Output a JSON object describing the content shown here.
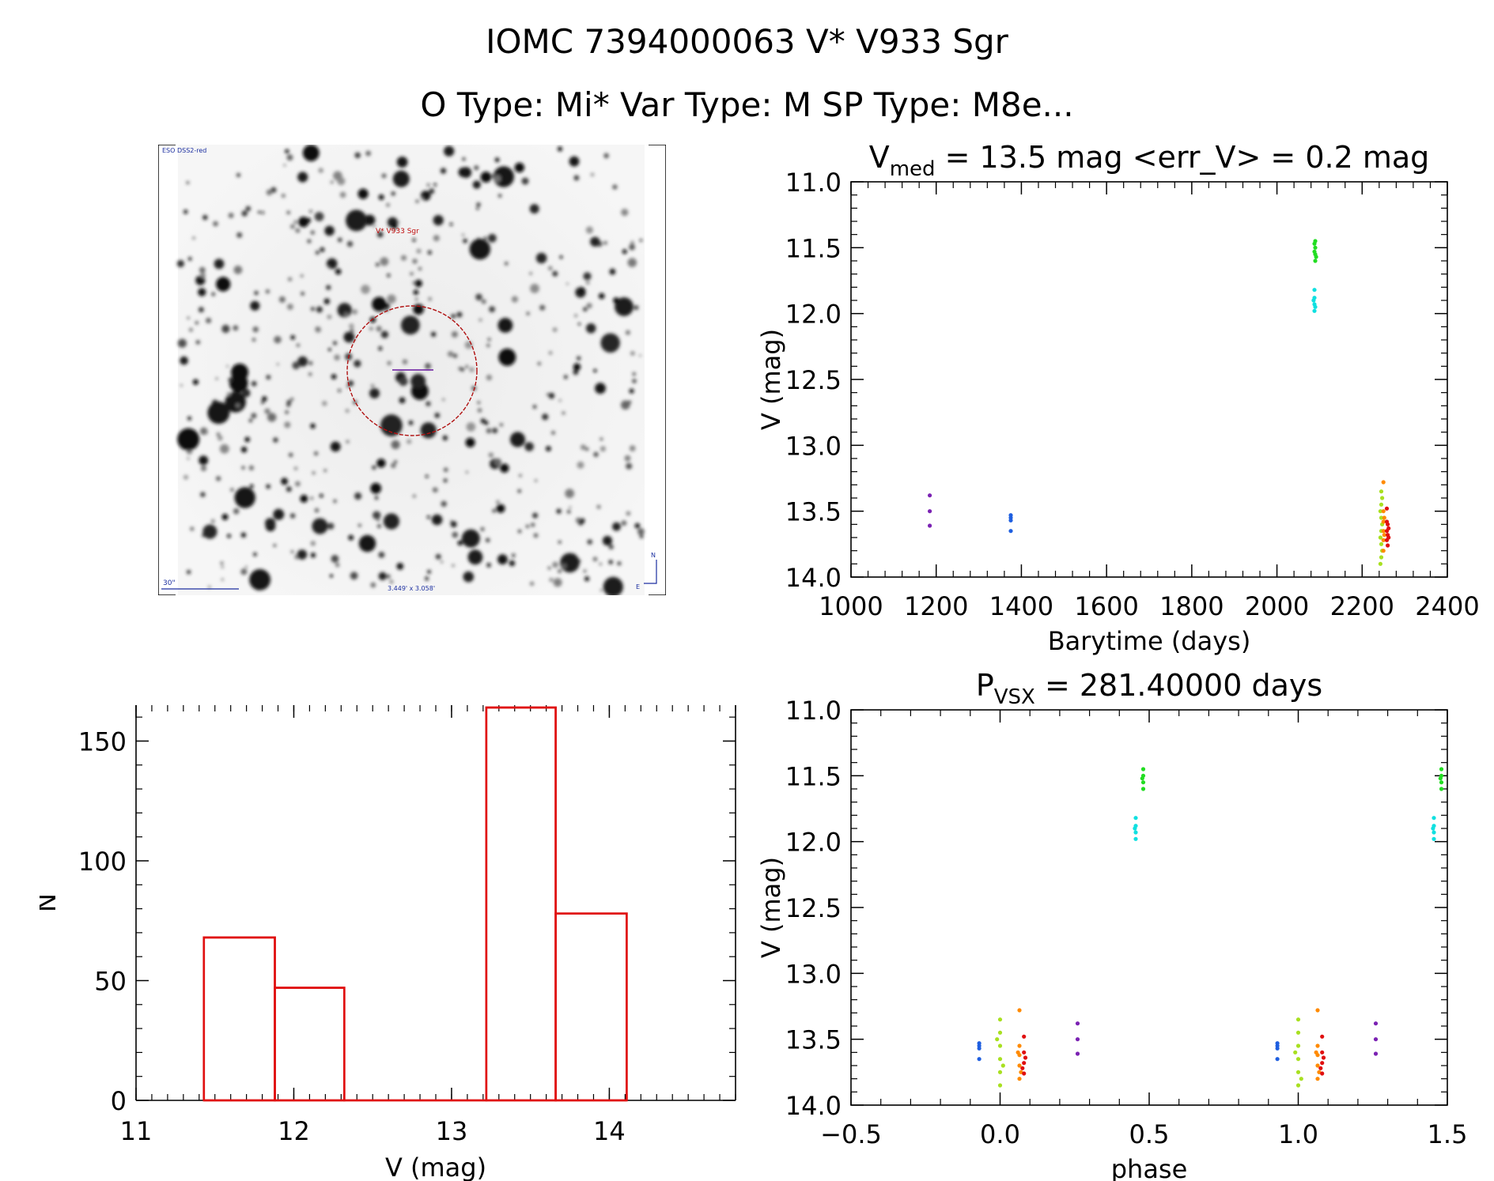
{
  "header": {
    "line1": "IOMC 7394000063   V* V933 Sgr",
    "line2": "O Type: Mi*  Var Type: M  SP Type: M8e..."
  },
  "finding_chart": {
    "survey_label": "ESO DSS2-red",
    "target_label": "V* V933 Sgr",
    "scale_label": "30\"",
    "fov_label": "3.449' x 3.058'",
    "north_label": "N",
    "east_label": "E"
  },
  "colors": {
    "hist": "#e01010",
    "purple": "#7b22b3",
    "blue": "#1f5fe0",
    "green": "#22dd22",
    "cyan": "#10e0e0",
    "lime": "#a8e020",
    "orange": "#ff8a00",
    "red": "#e01010"
  },
  "chart_data": [
    {
      "type": "scatter",
      "title_prefix": "V",
      "title_sub": "med",
      "title_rest": " = 13.5 mag <err_V> = 0.2 mag",
      "xlabel": "Barytime (days)",
      "ylabel": "V (mag)",
      "xlim": [
        1000,
        2400
      ],
      "ylim": [
        14.0,
        11.0
      ],
      "xticks": [
        1000,
        1200,
        1400,
        1600,
        1800,
        2000,
        2200,
        2400
      ],
      "yticks": [
        11.0,
        11.5,
        12.0,
        12.5,
        13.0,
        13.5,
        14.0
      ],
      "series": [
        {
          "color": "purple",
          "points": [
            [
              1185,
              13.38
            ],
            [
              1185,
              13.5
            ],
            [
              1185,
              13.61
            ]
          ]
        },
        {
          "color": "blue",
          "points": [
            [
              1375,
              13.53
            ],
            [
              1375,
              13.55
            ],
            [
              1375,
              13.57
            ],
            [
              1375,
              13.65
            ]
          ]
        },
        {
          "color": "green",
          "points": [
            [
              2090,
              11.45
            ],
            [
              2090,
              11.5
            ],
            [
              2090,
              11.55
            ],
            [
              2090,
              11.6
            ],
            [
              2088,
              11.47
            ],
            [
              2088,
              11.53
            ],
            [
              2092,
              11.57
            ]
          ]
        },
        {
          "color": "cyan",
          "points": [
            [
              2088,
              11.82
            ],
            [
              2088,
              11.88
            ],
            [
              2088,
              11.93
            ],
            [
              2088,
              11.98
            ],
            [
              2086,
              11.9
            ],
            [
              2090,
              11.95
            ]
          ]
        },
        {
          "color": "lime",
          "points": [
            [
              2245,
              13.35
            ],
            [
              2245,
              13.45
            ],
            [
              2245,
              13.55
            ],
            [
              2245,
              13.65
            ],
            [
              2245,
              13.75
            ],
            [
              2245,
              13.85
            ],
            [
              2247,
              13.4
            ],
            [
              2247,
              13.6
            ],
            [
              2247,
              13.8
            ],
            [
              2243,
              13.5
            ],
            [
              2243,
              13.7
            ],
            [
              2243,
              13.9
            ]
          ]
        },
        {
          "color": "orange",
          "points": [
            [
              2250,
              13.28
            ],
            [
              2250,
              13.5
            ],
            [
              2250,
              13.58
            ],
            [
              2250,
              13.65
            ],
            [
              2250,
              13.72
            ],
            [
              2250,
              13.8
            ],
            [
              2252,
              13.55
            ],
            [
              2252,
              13.68
            ]
          ]
        },
        {
          "color": "red",
          "points": [
            [
              2258,
              13.48
            ],
            [
              2258,
              13.58
            ],
            [
              2258,
              13.65
            ],
            [
              2258,
              13.72
            ],
            [
              2260,
              13.6
            ],
            [
              2260,
              13.68
            ],
            [
              2260,
              13.76
            ],
            [
              2262,
              13.63
            ],
            [
              2262,
              13.7
            ]
          ]
        }
      ]
    },
    {
      "type": "scatter",
      "title_prefix": "P",
      "title_sub": "VSX",
      "title_rest": " = 281.40000 days",
      "xlabel": "phase",
      "ylabel": "V (mag)",
      "xlim": [
        -0.5,
        1.5
      ],
      "ylim": [
        14.0,
        11.0
      ],
      "xticks": [
        -0.5,
        0.0,
        0.5,
        1.0,
        1.5
      ],
      "xtick_labels": [
        "−0.5",
        "0.0",
        "0.5",
        "1.0",
        "1.5"
      ],
      "yticks": [
        11.0,
        11.5,
        12.0,
        12.5,
        13.0,
        13.5,
        14.0
      ],
      "series": [
        {
          "color": "blue",
          "points": [
            [
              -0.07,
              13.53
            ],
            [
              -0.07,
              13.55
            ],
            [
              -0.07,
              13.57
            ],
            [
              -0.07,
              13.65
            ],
            [
              0.93,
              13.53
            ],
            [
              0.93,
              13.55
            ],
            [
              0.93,
              13.57
            ],
            [
              0.93,
              13.65
            ]
          ]
        },
        {
          "color": "lime",
          "points": [
            [
              0.0,
              13.35
            ],
            [
              0.0,
              13.45
            ],
            [
              0.0,
              13.55
            ],
            [
              0.0,
              13.65
            ],
            [
              0.0,
              13.75
            ],
            [
              0.0,
              13.85
            ],
            [
              -0.01,
              13.5
            ],
            [
              0.01,
              13.7
            ],
            [
              1.0,
              13.35
            ],
            [
              1.0,
              13.45
            ],
            [
              1.0,
              13.55
            ],
            [
              1.0,
              13.65
            ],
            [
              1.0,
              13.75
            ],
            [
              1.0,
              13.85
            ],
            [
              0.99,
              13.6
            ],
            [
              1.01,
              13.8
            ]
          ]
        },
        {
          "color": "orange",
          "points": [
            [
              0.065,
              13.28
            ],
            [
              0.065,
              13.55
            ],
            [
              0.065,
              13.62
            ],
            [
              0.065,
              13.7
            ],
            [
              0.065,
              13.8
            ],
            [
              0.06,
              13.6
            ],
            [
              0.07,
              13.75
            ],
            [
              1.065,
              13.28
            ],
            [
              1.065,
              13.55
            ],
            [
              1.065,
              13.62
            ],
            [
              1.065,
              13.7
            ],
            [
              1.065,
              13.8
            ],
            [
              1.06,
              13.6
            ],
            [
              1.07,
              13.75
            ]
          ]
        },
        {
          "color": "red",
          "points": [
            [
              0.08,
              13.48
            ],
            [
              0.08,
              13.6
            ],
            [
              0.08,
              13.68
            ],
            [
              0.08,
              13.76
            ],
            [
              0.085,
              13.64
            ],
            [
              0.075,
              13.72
            ],
            [
              1.08,
              13.48
            ],
            [
              1.08,
              13.6
            ],
            [
              1.08,
              13.68
            ],
            [
              1.08,
              13.76
            ],
            [
              1.085,
              13.64
            ],
            [
              1.075,
              13.72
            ]
          ]
        },
        {
          "color": "purple",
          "points": [
            [
              0.26,
              13.38
            ],
            [
              0.26,
              13.5
            ],
            [
              0.26,
              13.61
            ],
            [
              1.26,
              13.38
            ],
            [
              1.26,
              13.5
            ],
            [
              1.26,
              13.61
            ]
          ]
        },
        {
          "color": "cyan",
          "points": [
            [
              0.455,
              11.82
            ],
            [
              0.455,
              11.88
            ],
            [
              0.455,
              11.93
            ],
            [
              0.455,
              11.98
            ],
            [
              0.452,
              11.9
            ],
            [
              1.455,
              11.82
            ],
            [
              1.455,
              11.88
            ],
            [
              1.455,
              11.93
            ],
            [
              1.455,
              11.98
            ],
            [
              1.452,
              11.9
            ]
          ]
        },
        {
          "color": "green",
          "points": [
            [
              0.48,
              11.45
            ],
            [
              0.48,
              11.5
            ],
            [
              0.48,
              11.55
            ],
            [
              0.48,
              11.6
            ],
            [
              0.477,
              11.52
            ],
            [
              1.48,
              11.45
            ],
            [
              1.48,
              11.5
            ],
            [
              1.48,
              11.55
            ],
            [
              1.48,
              11.6
            ],
            [
              1.477,
              11.52
            ]
          ]
        }
      ]
    },
    {
      "type": "bar",
      "title": "",
      "xlabel": "V (mag)",
      "ylabel": "N",
      "xlim": [
        11.0,
        14.8
      ],
      "ylim": [
        0,
        165
      ],
      "xticks": [
        11,
        12,
        13,
        14
      ],
      "yticks": [
        0,
        50,
        100,
        150
      ],
      "bins": [
        {
          "x0": 11.43,
          "x1": 11.88,
          "value": 68
        },
        {
          "x0": 11.88,
          "x1": 12.32,
          "value": 47
        },
        {
          "x0": 12.32,
          "x1": 13.22,
          "value": 0
        },
        {
          "x0": 13.22,
          "x1": 13.66,
          "value": 164
        },
        {
          "x0": 13.66,
          "x1": 14.11,
          "value": 78
        }
      ]
    }
  ]
}
